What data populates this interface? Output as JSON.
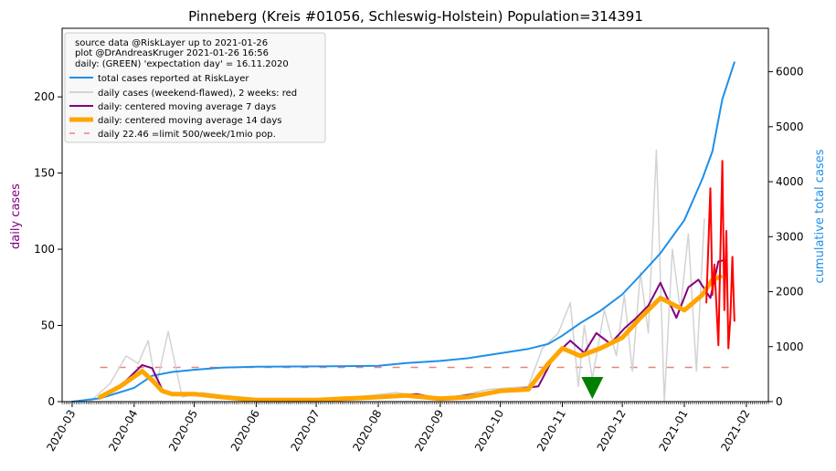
{
  "chart_data": {
    "type": "line",
    "title": "Pinneberg (Kreis #01056, Schleswig-Holstein) Population=314391",
    "ylabel_left": "daily cases",
    "ylabel_right": "cumulative total cases",
    "ylim_left": [
      0,
      245
    ],
    "ylim_right": [
      0,
      6790
    ],
    "xlim": [
      "2020-02-25",
      "2021-02-12"
    ],
    "yticks_left": [
      0,
      50,
      100,
      150,
      200
    ],
    "yticks_right": [
      0,
      1000,
      2000,
      3000,
      4000,
      5000,
      6000
    ],
    "xticks": [
      "2020-03",
      "2020-04",
      "2020-05",
      "2020-06",
      "2020-07",
      "2020-08",
      "2020-09",
      "2020-10",
      "2020-11",
      "2020-12",
      "2021-01",
      "2021-02"
    ],
    "grid": false,
    "legend_position": "upper-left",
    "legend": {
      "header": [
        "source data @RiskLayer up to 2021-01-26",
        "plot @DrAndreasKruger 2021-01-26 16:56",
        "daily: (GREEN) 'expectation day' = 16.11.2020"
      ],
      "entries": [
        "total cases reported at RiskLayer",
        "daily cases (weekend-flawed), 2 weeks: red",
        "daily: centered moving average 7 days",
        "daily: centered moving average 14 days",
        "daily 22.46 =limit 500/week/1mio pop."
      ]
    },
    "limit_line": {
      "value": 22.46,
      "color": "#e8837c"
    },
    "expectation_day": {
      "date": "2020-11-16",
      "color": "#008000"
    },
    "colors": {
      "cumulative": "#1f8fe8",
      "daily": "#d3d3d3",
      "daily_recent": "#ff0000",
      "ma7": "#800080",
      "ma14": "#ffa500",
      "ylabel_left": "#800080",
      "ylabel_right": "#1f8fe8"
    },
    "series": [
      {
        "name": "total cases reported at RiskLayer",
        "axis": "right",
        "x": [
          "2020-03-01",
          "2020-03-15",
          "2020-04-01",
          "2020-04-10",
          "2020-04-20",
          "2020-05-01",
          "2020-05-15",
          "2020-06-01",
          "2020-07-01",
          "2020-08-01",
          "2020-08-15",
          "2020-09-01",
          "2020-09-15",
          "2020-10-01",
          "2020-10-15",
          "2020-10-25",
          "2020-11-01",
          "2020-11-10",
          "2020-11-20",
          "2020-12-01",
          "2020-12-10",
          "2020-12-20",
          "2021-01-01",
          "2021-01-10",
          "2021-01-15",
          "2021-01-20",
          "2021-01-26"
        ],
        "values": [
          0,
          60,
          250,
          470,
          540,
          580,
          620,
          635,
          640,
          650,
          700,
          740,
          790,
          880,
          960,
          1050,
          1200,
          1430,
          1650,
          1950,
          2300,
          2700,
          3300,
          4050,
          4550,
          5500,
          6170
        ]
      },
      {
        "name": "daily: centered moving average 14 days",
        "axis": "left",
        "x": [
          "2020-03-15",
          "2020-03-25",
          "2020-04-05",
          "2020-04-10",
          "2020-04-15",
          "2020-04-20",
          "2020-05-01",
          "2020-05-15",
          "2020-06-01",
          "2020-07-01",
          "2020-08-01",
          "2020-08-15",
          "2020-09-01",
          "2020-09-15",
          "2020-10-01",
          "2020-10-15",
          "2020-10-25",
          "2020-11-01",
          "2020-11-10",
          "2020-11-20",
          "2020-12-01",
          "2020-12-10",
          "2020-12-20",
          "2021-01-01",
          "2021-01-10",
          "2021-01-15",
          "2021-01-19"
        ],
        "values": [
          3,
          10,
          20,
          14,
          7,
          5,
          5,
          3,
          1,
          1,
          3,
          4,
          2,
          3,
          7,
          8,
          25,
          35,
          30,
          35,
          42,
          55,
          68,
          60,
          70,
          80,
          82
        ]
      },
      {
        "name": "daily: centered moving average 7 days",
        "axis": "left",
        "x": [
          "2020-03-15",
          "2020-03-25",
          "2020-04-05",
          "2020-04-10",
          "2020-04-15",
          "2020-04-20",
          "2020-05-01",
          "2020-06-01",
          "2020-07-01",
          "2020-08-01",
          "2020-08-20",
          "2020-09-01",
          "2020-10-01",
          "2020-10-20",
          "2020-10-28",
          "2020-11-05",
          "2020-11-12",
          "2020-11-18",
          "2020-11-25",
          "2020-12-02",
          "2020-12-08",
          "2020-12-14",
          "2020-12-20",
          "2020-12-28",
          "2021-01-03",
          "2021-01-08",
          "2021-01-14",
          "2021-01-18",
          "2021-01-22"
        ],
        "values": [
          2,
          10,
          24,
          22,
          8,
          5,
          5,
          1,
          1,
          3,
          5,
          2,
          7,
          10,
          30,
          40,
          32,
          45,
          38,
          48,
          55,
          63,
          78,
          55,
          75,
          80,
          68,
          92,
          93
        ]
      },
      {
        "name": "daily cases (weekend-flawed), 2 weeks: red",
        "axis": "left",
        "x": [
          "2020-03-10",
          "2020-03-20",
          "2020-03-28",
          "2020-04-03",
          "2020-04-08",
          "2020-04-12",
          "2020-04-18",
          "2020-04-25",
          "2020-05-05",
          "2020-05-20",
          "2020-06-15",
          "2020-07-15",
          "2020-08-10",
          "2020-09-01",
          "2020-09-25",
          "2020-10-15",
          "2020-10-22",
          "2020-10-30",
          "2020-11-05",
          "2020-11-09",
          "2020-11-12",
          "2020-11-16",
          "2020-11-22",
          "2020-11-28",
          "2020-12-02",
          "2020-12-06",
          "2020-12-10",
          "2020-12-14",
          "2020-12-18",
          "2020-12-22",
          "2020-12-26",
          "2020-12-30",
          "2021-01-03",
          "2021-01-07",
          "2021-01-11"
        ],
        "values": [
          0,
          12,
          30,
          25,
          40,
          10,
          46,
          3,
          6,
          3,
          0,
          2,
          6,
          1,
          8,
          10,
          35,
          45,
          65,
          10,
          50,
          15,
          60,
          30,
          70,
          20,
          85,
          45,
          165,
          0,
          100,
          60,
          110,
          20,
          120
        ]
      },
      {
        "name": "daily cases recent 2 weeks",
        "axis": "left",
        "x": [
          "2021-01-12",
          "2021-01-14",
          "2021-01-15",
          "2021-01-16",
          "2021-01-18",
          "2021-01-20",
          "2021-01-21",
          "2021-01-22",
          "2021-01-23",
          "2021-01-24",
          "2021-01-25",
          "2021-01-26"
        ],
        "values": [
          65,
          140,
          70,
          90,
          37,
          158,
          60,
          112,
          35,
          55,
          95,
          53
        ]
      }
    ]
  }
}
